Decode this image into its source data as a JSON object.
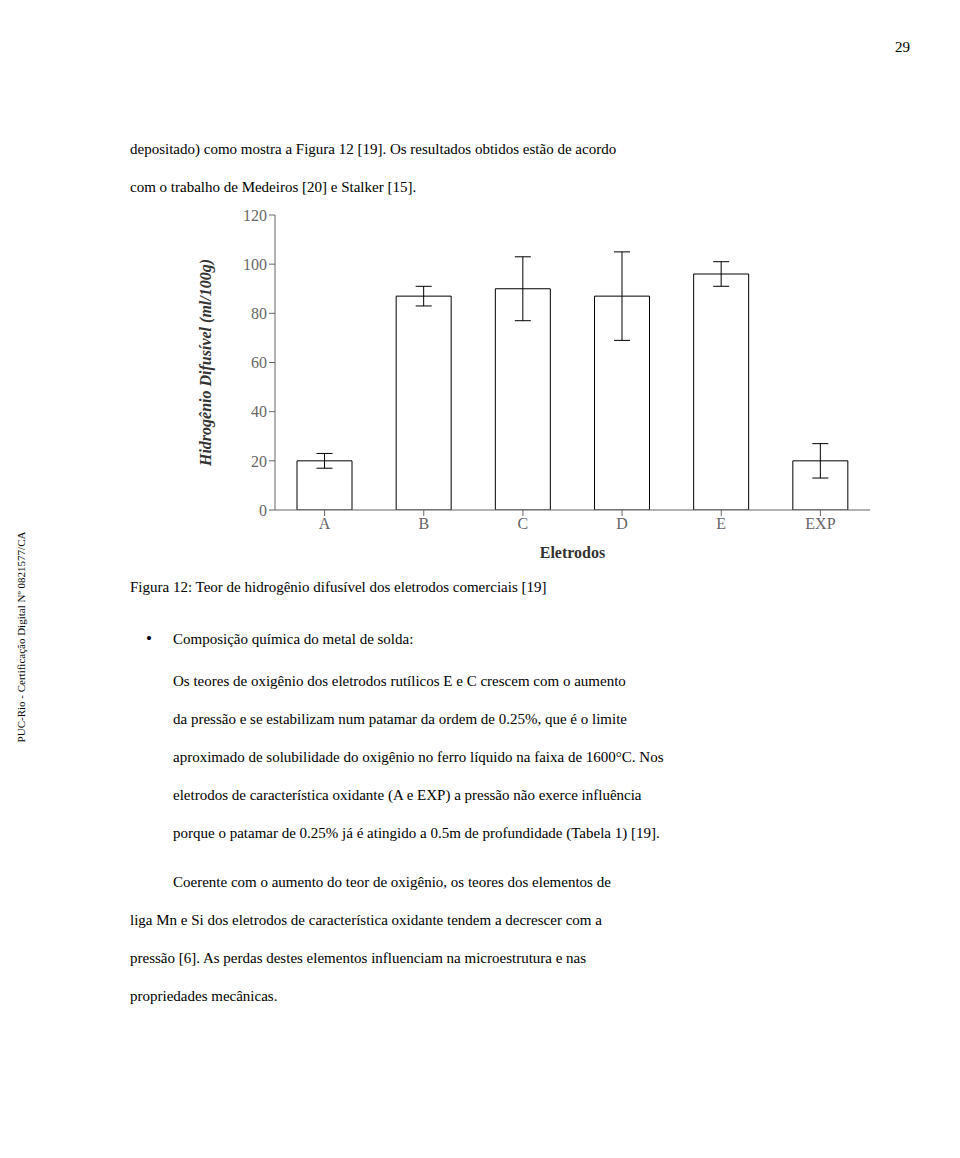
{
  "chart_data": {
    "type": "bar",
    "categories": [
      "A",
      "B",
      "C",
      "D",
      "E",
      "EXP"
    ],
    "values": [
      20,
      87,
      90,
      87,
      96,
      20
    ],
    "errors": [
      3,
      4,
      13,
      18,
      5,
      7
    ],
    "color": "#ffffff",
    "ylim": [
      0,
      120
    ],
    "yticks": [
      0,
      20,
      40,
      60,
      80,
      100,
      120
    ],
    "ylabel": "Hidrogênio Difusível (ml/100g)",
    "xlabel": "Eletrodos",
    "grid": false,
    "annotations": [
      "29",
      "depositado) como mostra a Figura 12 [19]. Os resultados obtidos estão de acordo",
      "com o trabalho de Medeiros [20] e Stalker [15].",
      "PUC-Rio - Certificação Digital Nº 0821577/CA",
      "Figura 12: Teor de hidrogênio difusível dos eletrodos comerciais [19]",
      "•",
      "Composição química do metal de solda:",
      "Os teores de oxigênio dos eletrodos rutílicos E e C crescem com o aumento",
      "da pressão e se estabilizam num patamar da ordem de 0.25%, que é o limite",
      "aproximado de solubilidade do oxigênio no ferro líquido na faixa de 1600°C. Nos",
      "eletrodos de característica oxidante (A e EXP) a pressão não exerce influência",
      "porque o patamar de 0.25% já é atingido a 0.5m de profundidade (Tabela 1) [19].",
      "Coerente com o aumento do teor de oxigênio, os teores dos elementos de",
      "liga Mn e Si dos eletrodos de característica oxidante tendem a decrescer com a",
      "pressão [6]. As perdas destes elementos influenciam na microestrutura e nas",
      "propriedades mecânicas."
    ]
  }
}
